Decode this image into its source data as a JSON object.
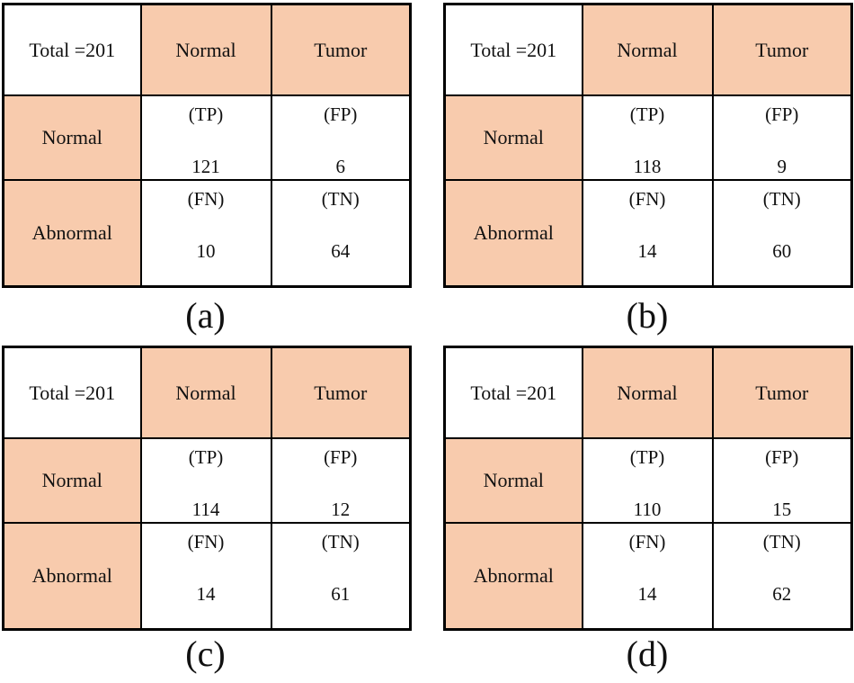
{
  "colors": {
    "cell_fill": "#F8CBAD",
    "border": "#000000",
    "text": "#111111",
    "background": "#FFFFFF"
  },
  "figure": {
    "panels": [
      {
        "caption": "(a)",
        "table": {
          "total_label": "Total =201",
          "col_headers": [
            "Normal",
            "Tumor"
          ],
          "rows": [
            {
              "header": "Normal",
              "cells": [
                {
                  "label": "(TP)",
                  "value": "121"
                },
                {
                  "label": "(FP)",
                  "value": "6"
                }
              ]
            },
            {
              "header": "Abnormal",
              "cells": [
                {
                  "label": "(FN)",
                  "value": "10"
                },
                {
                  "label": "(TN)",
                  "value": "64"
                }
              ]
            }
          ]
        }
      },
      {
        "caption": "(b)",
        "table": {
          "total_label": "Total =201",
          "col_headers": [
            "Normal",
            "Tumor"
          ],
          "rows": [
            {
              "header": "Normal",
              "cells": [
                {
                  "label": "(TP)",
                  "value": "118"
                },
                {
                  "label": "(FP)",
                  "value": "9"
                }
              ]
            },
            {
              "header": "Abnormal",
              "cells": [
                {
                  "label": "(FN)",
                  "value": "14"
                },
                {
                  "label": "(TN)",
                  "value": "60"
                }
              ]
            }
          ]
        }
      },
      {
        "caption": "(c)",
        "table": {
          "total_label": "Total =201",
          "col_headers": [
            "Normal",
            "Tumor"
          ],
          "rows": [
            {
              "header": "Normal",
              "cells": [
                {
                  "label": "(TP)",
                  "value": "114"
                },
                {
                  "label": "(FP)",
                  "value": "12"
                }
              ]
            },
            {
              "header": "Abnormal",
              "cells": [
                {
                  "label": "(FN)",
                  "value": "14"
                },
                {
                  "label": "(TN)",
                  "value": "61"
                }
              ]
            }
          ]
        }
      },
      {
        "caption": "(d)",
        "table": {
          "total_label": "Total =201",
          "col_headers": [
            "Normal",
            "Tumor"
          ],
          "rows": [
            {
              "header": "Normal",
              "cells": [
                {
                  "label": "(TP)",
                  "value": "110"
                },
                {
                  "label": "(FP)",
                  "value": "15"
                }
              ]
            },
            {
              "header": "Abnormal",
              "cells": [
                {
                  "label": "(FN)",
                  "value": "14"
                },
                {
                  "label": "(TN)",
                  "value": "62"
                }
              ]
            }
          ]
        }
      }
    ]
  }
}
